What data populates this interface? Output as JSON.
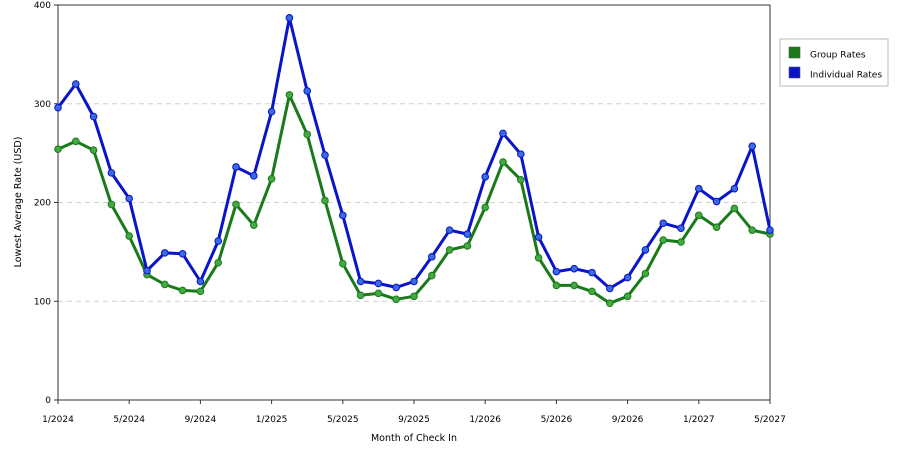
{
  "chart_data": {
    "type": "line",
    "xlabel": "Month of Check In",
    "ylabel": "Lowest Average Rate (USD)",
    "ylim": [
      0,
      400
    ],
    "yticks": [
      0,
      100,
      200,
      300,
      400
    ],
    "x_range": [
      "2024-01",
      "2027-05"
    ],
    "xticks": [
      {
        "date": "2024-01",
        "label": "1/2024"
      },
      {
        "date": "2024-05",
        "label": "5/2024"
      },
      {
        "date": "2024-09",
        "label": "9/2024"
      },
      {
        "date": "2025-01",
        "label": "1/2025"
      },
      {
        "date": "2025-05",
        "label": "5/2025"
      },
      {
        "date": "2025-09",
        "label": "9/2025"
      },
      {
        "date": "2026-01",
        "label": "1/2026"
      },
      {
        "date": "2026-05",
        "label": "5/2026"
      },
      {
        "date": "2026-09",
        "label": "9/2026"
      },
      {
        "date": "2027-01",
        "label": "1/2027"
      },
      {
        "date": "2027-05",
        "label": "5/2027"
      }
    ],
    "grid": "horizontal-dashed",
    "legend_position": "right",
    "x": [
      "2024-01",
      "2024-02",
      "2024-03",
      "2024-04",
      "2024-05",
      "2024-06",
      "2024-07",
      "2024-08",
      "2024-09",
      "2024-10",
      "2024-11",
      "2024-12",
      "2025-01",
      "2025-02",
      "2025-03",
      "2025-04",
      "2025-05",
      "2025-06",
      "2025-07",
      "2025-08",
      "2025-09",
      "2025-10",
      "2025-11",
      "2025-12",
      "2026-01",
      "2026-02",
      "2026-03",
      "2026-04",
      "2026-05",
      "2026-06",
      "2026-07",
      "2026-08",
      "2026-09",
      "2026-10",
      "2026-11",
      "2026-12",
      "2027-01",
      "2027-02",
      "2027-03",
      "2027-04",
      "2027-05"
    ],
    "series": [
      {
        "name": "Group Rates",
        "color": "#1a7a1a",
        "marker_color": "#44a844",
        "values": [
          254,
          262,
          253,
          198,
          166,
          127,
          117,
          111,
          110,
          139,
          198,
          177,
          224,
          309,
          269,
          202,
          138,
          106,
          108,
          102,
          105,
          126,
          152,
          156,
          195,
          241,
          223,
          144,
          116,
          116,
          110,
          98,
          105,
          128,
          162,
          160,
          187,
          175,
          194,
          172,
          168
        ]
      },
      {
        "name": "Individual Rates",
        "color": "#0a14c8",
        "marker_color": "#3a6ae0",
        "values": [
          296,
          320,
          287,
          230,
          204,
          131,
          149,
          148,
          120,
          161,
          236,
          227,
          292,
          387,
          313,
          248,
          187,
          120,
          118,
          114,
          120,
          145,
          172,
          168,
          226,
          270,
          249,
          165,
          130,
          133,
          129,
          113,
          124,
          152,
          179,
          174,
          214,
          201,
          214,
          257,
          172
        ]
      }
    ]
  }
}
